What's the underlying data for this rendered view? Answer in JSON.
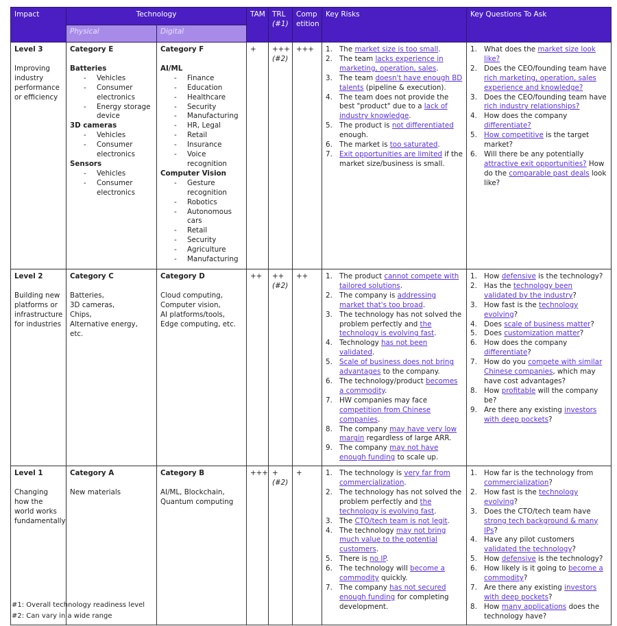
{
  "header": {
    "impact": "Impact",
    "technology": "Technology",
    "physical": "Physical",
    "digital": "Digital",
    "tam": "TAM",
    "trl": "TRL",
    "trl_note": "(#1)",
    "competition": "Comp etition",
    "risks": "Key Risks",
    "questions": "Key Questions To Ask"
  },
  "colors": {
    "header": "#4a1ec2",
    "subheader": "#a88be9",
    "link": "#5a2fe0"
  },
  "rows": [
    {
      "level": "Level 3",
      "desc": "Improving industry performance or efficiency",
      "physical": {
        "title": "Category E",
        "groups": [
          {
            "name": "Batteries",
            "items": [
              "Vehicles",
              "Consumer electronics",
              "Energy storage device"
            ]
          },
          {
            "name": "3D cameras",
            "items": [
              "Vehicles",
              "Consumer electronics"
            ]
          },
          {
            "name": "Sensors",
            "items": [
              "Vehicles",
              "Consumer electronics"
            ]
          }
        ],
        "lines": []
      },
      "digital": {
        "title": "Category F",
        "groups": [
          {
            "name": "AI/ML",
            "items": [
              "Finance",
              "Education",
              "Healthcare",
              "Security",
              "Manufacturing",
              "HR, Legal",
              "Retail",
              "Insurance",
              "Voice recognition"
            ]
          },
          {
            "name": "Computer Vision",
            "items": [
              "Gesture recognition",
              "Robotics",
              "Autonomous cars",
              "Retail",
              "Security",
              "Agriculture",
              "Manufacturing"
            ]
          }
        ],
        "lines": []
      },
      "tam": "+",
      "trl": "+++",
      "trl_note": "(#2)",
      "comp": "+++",
      "risks": [
        [
          {
            "t": "The "
          },
          {
            "t": "market size is too small",
            "link": true
          },
          {
            "t": "."
          }
        ],
        [
          {
            "t": "The team "
          },
          {
            "t": "lacks experience in marketing, operation, sales",
            "link": true
          },
          {
            "t": "."
          }
        ],
        [
          {
            "t": "The team "
          },
          {
            "t": "doesn't have enough BD talents",
            "link": true
          },
          {
            "t": " (pipeline & execution)."
          }
        ],
        [
          {
            "t": "The team does not provide the best \"product\" due to a "
          },
          {
            "t": "lack of industry knowledge",
            "link": true
          },
          {
            "t": "."
          }
        ],
        [
          {
            "t": "The product is "
          },
          {
            "t": "not differentiated",
            "link": true
          },
          {
            "t": " enough."
          }
        ],
        [
          {
            "t": "The market is "
          },
          {
            "t": "too saturated",
            "link": true
          },
          {
            "t": "."
          }
        ],
        [
          {
            "t": "Exit opportunities are limited",
            "link": true
          },
          {
            "t": " if the market size/business is small."
          }
        ]
      ],
      "questions": [
        [
          {
            "t": "What does the "
          },
          {
            "t": "market size look like?",
            "link": true
          }
        ],
        [
          {
            "t": "Does the CEO/founding team have "
          },
          {
            "t": "rich marketing, operation, sales experience and knowledge?",
            "link": true
          }
        ],
        [
          {
            "t": "Does the CEO/founding team have "
          },
          {
            "t": "rich industry relationships?",
            "link": true
          }
        ],
        [
          {
            "t": "How does the company "
          },
          {
            "t": "differentiate?",
            "link": true
          }
        ],
        [
          {
            "t": "How competitive",
            "link": true
          },
          {
            "t": " is the target market?"
          }
        ],
        [
          {
            "t": "Will there be any potentially "
          },
          {
            "t": "attractive exit opportunities?",
            "link": true
          },
          {
            "t": " How do the "
          },
          {
            "t": "comparable past deals",
            "link": true
          },
          {
            "t": " look like?"
          }
        ]
      ]
    },
    {
      "level": "Level 2",
      "desc": "Building new platforms or infrastructure for industries",
      "physical": {
        "title": "Category C",
        "groups": [],
        "lines": [
          "Batteries,",
          "3D cameras,",
          "Chips,",
          "Alternative energy, etc."
        ]
      },
      "digital": {
        "title": "Category D",
        "groups": [],
        "lines": [
          "Cloud computing,",
          "Computer vision,",
          "AI platforms/tools,",
          "Edge computing, etc."
        ]
      },
      "tam": "++",
      "trl": "++",
      "trl_note": "(#2)",
      "comp": "++",
      "risks": [
        [
          {
            "t": "The product "
          },
          {
            "t": "cannot compete with tailored solutions",
            "link": true
          },
          {
            "t": "."
          }
        ],
        [
          {
            "t": "The company is "
          },
          {
            "t": "addressing market that's too broad",
            "link": true
          },
          {
            "t": "."
          }
        ],
        [
          {
            "t": "The technology has not solved the problem perfectly and "
          },
          {
            "t": "the technology is evolving fast",
            "link": true
          },
          {
            "t": "."
          }
        ],
        [
          {
            "t": "Technology "
          },
          {
            "t": "has not been validated",
            "link": true
          },
          {
            "t": "."
          }
        ],
        [
          {
            "t": "Scale of business does not bring advantages",
            "link": true
          },
          {
            "t": " to the company."
          }
        ],
        [
          {
            "t": "The technology/product "
          },
          {
            "t": "becomes a commodity",
            "link": true
          },
          {
            "t": "."
          }
        ],
        [
          {
            "t": "HW companies may face "
          },
          {
            "t": "competition from Chinese companies",
            "link": true
          },
          {
            "t": "."
          }
        ],
        [
          {
            "t": "The company "
          },
          {
            "t": "may have very low margin",
            "link": true
          },
          {
            "t": " regardless of large ARR."
          }
        ],
        [
          {
            "t": "The company "
          },
          {
            "t": "may not have enough funding",
            "link": true
          },
          {
            "t": " to scale up."
          }
        ]
      ],
      "questions": [
        [
          {
            "t": "How "
          },
          {
            "t": "defensive",
            "link": true
          },
          {
            "t": " is the technology?"
          }
        ],
        [
          {
            "t": "Has the "
          },
          {
            "t": "technology been validated by the industry",
            "link": true
          },
          {
            "t": "?"
          }
        ],
        [
          {
            "t": "How fast is the "
          },
          {
            "t": "technology evolving",
            "link": true
          },
          {
            "t": "?"
          }
        ],
        [
          {
            "t": "Does "
          },
          {
            "t": "scale of business matter",
            "link": true
          },
          {
            "t": "?"
          }
        ],
        [
          {
            "t": "Does "
          },
          {
            "t": "customization matter",
            "link": true
          },
          {
            "t": "?"
          }
        ],
        [
          {
            "t": "How does the company "
          },
          {
            "t": "differentiate",
            "link": true
          },
          {
            "t": "?"
          }
        ],
        [
          {
            "t": "How do you "
          },
          {
            "t": "compete with similar Chinese companies",
            "link": true
          },
          {
            "t": ", which may have cost advantages?"
          }
        ],
        [
          {
            "t": "How "
          },
          {
            "t": "profitable",
            "link": true
          },
          {
            "t": " will the company be?"
          }
        ],
        [
          {
            "t": "Are there any existing "
          },
          {
            "t": "investors with deep pockets",
            "link": true
          },
          {
            "t": "?"
          }
        ]
      ]
    },
    {
      "level": "Level 1",
      "desc": "Changing how the world works fundamentally",
      "physical": {
        "title": "Category A",
        "groups": [],
        "lines": [
          "New materials"
        ]
      },
      "digital": {
        "title": "Category B",
        "groups": [],
        "lines": [
          "AI/ML, Blockchain,",
          "Quantum computing"
        ]
      },
      "tam": "+++",
      "trl": "+",
      "trl_note": "(#2)",
      "comp": "+",
      "risks": [
        [
          {
            "t": "The technology is "
          },
          {
            "t": "very far from commercialization",
            "link": true
          },
          {
            "t": "."
          }
        ],
        [
          {
            "t": "The technology has not solved the problem perfectly and "
          },
          {
            "t": "the technology is evolving fast",
            "link": true
          },
          {
            "t": "."
          }
        ],
        [
          {
            "t": "The "
          },
          {
            "t": "CTO/tech team is not legit",
            "link": true
          },
          {
            "t": "."
          }
        ],
        [
          {
            "t": "The technology "
          },
          {
            "t": "may not bring much value to the potential customers",
            "link": true
          },
          {
            "t": "."
          }
        ],
        [
          {
            "t": "There is "
          },
          {
            "t": "no IP",
            "link": true
          },
          {
            "t": "."
          }
        ],
        [
          {
            "t": "The technology will "
          },
          {
            "t": "become a commodity",
            "link": true
          },
          {
            "t": " quickly."
          }
        ],
        [
          {
            "t": "The company "
          },
          {
            "t": "has not secured enough funding",
            "link": true
          },
          {
            "t": " for completing development."
          }
        ]
      ],
      "questions": [
        [
          {
            "t": "How far is the technology from "
          },
          {
            "t": "commercialization",
            "link": true
          },
          {
            "t": "?"
          }
        ],
        [
          {
            "t": "How fast is the "
          },
          {
            "t": "technology evolving",
            "link": true
          },
          {
            "t": "?"
          }
        ],
        [
          {
            "t": "Does the CTO/tech team have "
          },
          {
            "t": "strong tech background & many IPs",
            "link": true
          },
          {
            "t": "?"
          }
        ],
        [
          {
            "t": "Have any pilot customers "
          },
          {
            "t": "validated the technology",
            "link": true
          },
          {
            "t": "?"
          }
        ],
        [
          {
            "t": "How "
          },
          {
            "t": "defensive",
            "link": true
          },
          {
            "t": " is the technology?"
          }
        ],
        [
          {
            "t": "How likely is it going to "
          },
          {
            "t": "become a commodity",
            "link": true
          },
          {
            "t": "?"
          }
        ],
        [
          {
            "t": "Are there any existing "
          },
          {
            "t": "investors with deep pockets",
            "link": true
          },
          {
            "t": "?"
          }
        ],
        [
          {
            "t": "How "
          },
          {
            "t": "many applications",
            "link": true
          },
          {
            "t": " does the technology have?"
          }
        ]
      ]
    }
  ],
  "footnotes": [
    "#1: Overall technology readiness level",
    "#2: Can vary in a wide range"
  ]
}
